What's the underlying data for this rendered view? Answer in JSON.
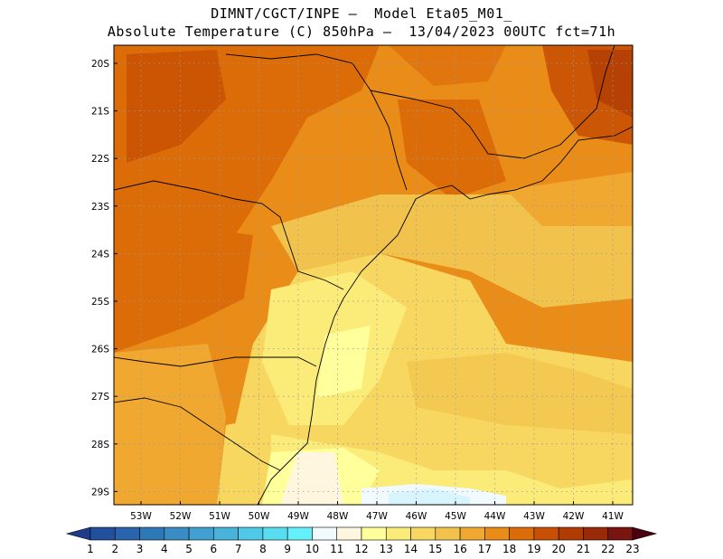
{
  "title": {
    "line1": "DIMNT/CGCT/INPE –  Model Eta05_M01_",
    "line2": "Absolute Temperature (C) 850hPa –  13/04/2023 00UTC fct=71h"
  },
  "axes": {
    "lat_labels": [
      "20S",
      "21S",
      "22S",
      "23S",
      "24S",
      "25S",
      "26S",
      "27S",
      "28S",
      "29S"
    ],
    "lon_labels": [
      "53W",
      "52W",
      "51W",
      "50W",
      "49W",
      "48W",
      "47W",
      "46W",
      "45W",
      "44W",
      "43W",
      "42W",
      "41W"
    ]
  },
  "colorbar": {
    "labels": [
      "1",
      "2",
      "3",
      "4",
      "5",
      "6",
      "7",
      "8",
      "9",
      "10",
      "11",
      "12",
      "13",
      "14",
      "15",
      "16",
      "17",
      "18",
      "19",
      "20",
      "21",
      "22",
      "23"
    ],
    "colors": [
      "#1e3c8c",
      "#22509c",
      "#2a64ac",
      "#2f78b8",
      "#3a8cc4",
      "#41a0d0",
      "#48b4dc",
      "#50c8e8",
      "#58dcf0",
      "#64f0fc",
      "#f0faff",
      "#fff6e0",
      "#ffff9c",
      "#fbeb78",
      "#f7d760",
      "#f2c34c",
      "#f0a830",
      "#ea8c18",
      "#dc6c08",
      "#c85004",
      "#b03c04",
      "#982a0a",
      "#7a1410",
      "#600010",
      "#4a0010"
    ]
  }
}
